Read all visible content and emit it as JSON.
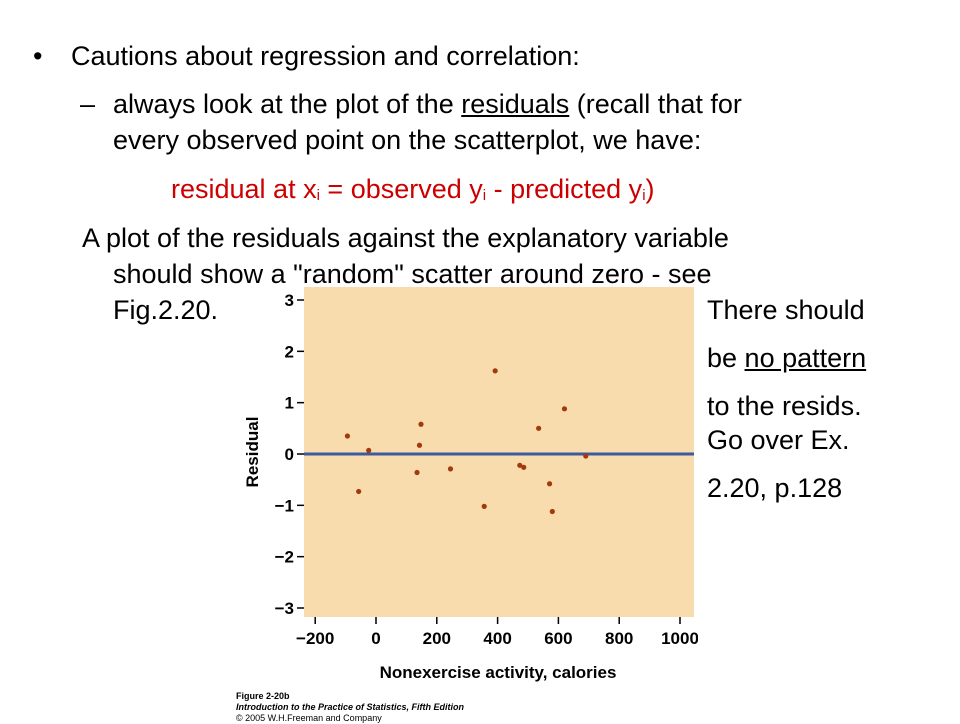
{
  "slide": {
    "bullet_char": "•",
    "bullet_text": "Cautions about regression and correlation:",
    "dash_char": "–",
    "line2a_pre": "always look at the plot of the ",
    "line2a_link": "residuals",
    "line2a_post": "  (recall that for",
    "line2b": "every observed point on the scatterplot, we have:",
    "formula": {
      "p1": "residual at x",
      "s1": "i",
      "p2": " = observed  y",
      "s2": "i",
      "p3": "  -  predicted  y",
      "s3": "i",
      "p4": ")"
    },
    "para_line1": "A plot of the residuals against the explanatory variable",
    "para_line2": "should show a \"random\" scatter around zero - see",
    "para_line3": "Fig.2.20.",
    "side_notes": {
      "l1": "There should",
      "l2_pre": "be ",
      "l2_u": "no pattern",
      "l3": "to the resids.",
      "l4": "Go over Ex.",
      "l5": "2.20, p.128"
    }
  },
  "figure_caption": {
    "line1": "Figure 2-20b",
    "line2": "Introduction to the Practice of Statistics, Fifth Edition",
    "line3": "© 2005 W.H.Freeman and Company"
  },
  "colors": {
    "plot_background": "#f9dcae",
    "point_color": "#a33a0c",
    "zero_line": "#3b5aa0",
    "formula_red": "#cc0000"
  },
  "chart_data": {
    "type": "scatter",
    "xlabel": "Nonexercise activity, calories",
    "ylabel": "Residual",
    "xlim": [
      -220,
      1050
    ],
    "ylim": [
      -3.2,
      3.2
    ],
    "x_ticks": [
      -200,
      0,
      200,
      400,
      600,
      800,
      1000
    ],
    "x_tick_labels": [
      "−200",
      "0",
      "200",
      "400",
      "600",
      "800",
      "1000"
    ],
    "y_ticks": [
      3,
      2,
      1,
      0,
      -1,
      -2,
      -3
    ],
    "y_tick_labels": [
      "3",
      "2",
      "1",
      "0",
      "−1",
      "−2",
      "−3"
    ],
    "reference_line_y": 0,
    "points": [
      {
        "x": -94,
        "y": 0.35
      },
      {
        "x": -57,
        "y": -0.73
      },
      {
        "x": -24,
        "y": 0.07
      },
      {
        "x": 135,
        "y": -0.36
      },
      {
        "x": 143,
        "y": 0.17
      },
      {
        "x": 148,
        "y": 0.58
      },
      {
        "x": 245,
        "y": -0.29
      },
      {
        "x": 356,
        "y": -1.02
      },
      {
        "x": 392,
        "y": 1.62
      },
      {
        "x": 473,
        "y": -0.22
      },
      {
        "x": 486,
        "y": -0.26
      },
      {
        "x": 535,
        "y": 0.5
      },
      {
        "x": 571,
        "y": -0.58
      },
      {
        "x": 580,
        "y": -1.12
      },
      {
        "x": 620,
        "y": 0.88
      },
      {
        "x": 690,
        "y": -0.04
      }
    ]
  }
}
